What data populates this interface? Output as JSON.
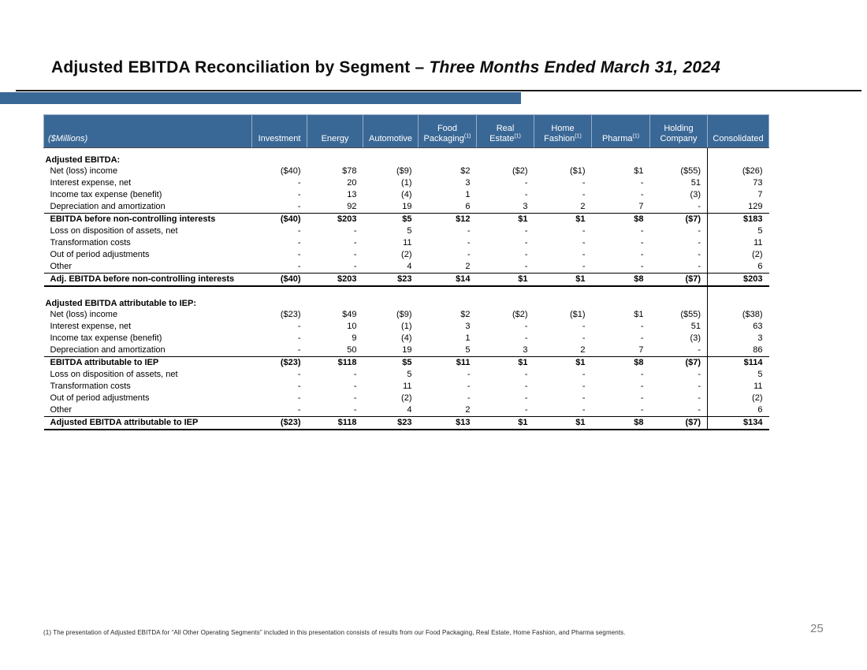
{
  "slide": {
    "title": {
      "main": "Adjusted EBITDA Reconciliation by Segment – ",
      "emphasis": "Three Months Ended March 31, 2024"
    },
    "footnote": "(1) The presentation of Adjusted EBITDA for “All Other Operating Segments” included in this presentation consists of results from our Food Packaging, Real Estate, Home Fashion, and Pharma segments.",
    "page_number": "25"
  },
  "colors": {
    "header_blue": "#3A6896",
    "accent_bar": "#3A6896",
    "page_number_gray": "#7F7F7F"
  },
  "table": {
    "unit_label": "($Millions)",
    "columns": [
      {
        "line1": "",
        "line2": "Investment",
        "sup": ""
      },
      {
        "line1": "",
        "line2": "Energy",
        "sup": ""
      },
      {
        "line1": "",
        "line2": "Automotive",
        "sup": ""
      },
      {
        "line1": "Food",
        "line2": "Packaging",
        "sup": "(1)"
      },
      {
        "line1": "Real",
        "line2": "Estate",
        "sup": "(1)"
      },
      {
        "line1": "Home",
        "line2": "Fashion",
        "sup": "(1)"
      },
      {
        "line1": "",
        "line2": "Pharma",
        "sup": "(1)"
      },
      {
        "line1": "Holding",
        "line2": "Company",
        "sup": ""
      },
      {
        "line1": "",
        "line2": "Consolidated",
        "sup": ""
      }
    ],
    "rows": [
      {
        "label": "Adjusted EBITDA:",
        "style": "section",
        "values": [
          "",
          "",
          "",
          "",
          "",
          "",
          "",
          "",
          ""
        ]
      },
      {
        "label": "Net (loss) income",
        "style": "item",
        "values": [
          "($40)",
          "$78",
          "($9)",
          "$2",
          "($2)",
          "($1)",
          "$1",
          "($55)",
          "($26)"
        ]
      },
      {
        "label": "Interest expense, net",
        "style": "item",
        "values": [
          "-",
          "20",
          "(1)",
          "3",
          "-",
          "-",
          "-",
          "51",
          "73"
        ]
      },
      {
        "label": "Income tax expense (benefit)",
        "style": "item",
        "values": [
          "-",
          "13",
          "(4)",
          "1",
          "-",
          "-",
          "-",
          "(3)",
          "7"
        ]
      },
      {
        "label": "Depreciation and amortization",
        "style": "item",
        "values": [
          "-",
          "92",
          "19",
          "6",
          "3",
          "2",
          "7",
          "-",
          "129"
        ]
      },
      {
        "label": "EBITDA before non-controlling interests",
        "style": "total",
        "values": [
          "($40)",
          "$203",
          "$5",
          "$12",
          "$1",
          "$1",
          "$8",
          "($7)",
          "$183"
        ]
      },
      {
        "label": "Loss on disposition of assets, net",
        "style": "item",
        "values": [
          "-",
          "-",
          "5",
          "-",
          "-",
          "-",
          "-",
          "-",
          "5"
        ]
      },
      {
        "label": "Transformation costs",
        "style": "item",
        "values": [
          "-",
          "-",
          "11",
          "-",
          "-",
          "-",
          "-",
          "-",
          "11"
        ]
      },
      {
        "label": "Out of period adjustments",
        "style": "item",
        "values": [
          "-",
          "-",
          "(2)",
          "-",
          "-",
          "-",
          "-",
          "-",
          "(2)"
        ]
      },
      {
        "label": "Other",
        "style": "item",
        "values": [
          "-",
          "-",
          "4",
          "2",
          "-",
          "-",
          "-",
          "-",
          "6"
        ]
      },
      {
        "label": "Adj. EBITDA before non-controlling interests",
        "style": "total_strong",
        "values": [
          "($40)",
          "$203",
          "$23",
          "$14",
          "$1",
          "$1",
          "$8",
          "($7)",
          "$203"
        ]
      },
      {
        "label": "",
        "style": "spacer",
        "values": [
          "",
          "",
          "",
          "",
          "",
          "",
          "",
          "",
          ""
        ]
      },
      {
        "label": "Adjusted EBITDA attributable to IEP:",
        "style": "section",
        "values": [
          "",
          "",
          "",
          "",
          "",
          "",
          "",
          "",
          ""
        ]
      },
      {
        "label": "Net (loss) income",
        "style": "item",
        "values": [
          "($23)",
          "$49",
          "($9)",
          "$2",
          "($2)",
          "($1)",
          "$1",
          "($55)",
          "($38)"
        ]
      },
      {
        "label": "Interest expense, net",
        "style": "item",
        "values": [
          "-",
          "10",
          "(1)",
          "3",
          "-",
          "-",
          "-",
          "51",
          "63"
        ]
      },
      {
        "label": "Income tax expense (benefit)",
        "style": "item",
        "values": [
          "-",
          "9",
          "(4)",
          "1",
          "-",
          "-",
          "-",
          "(3)",
          "3"
        ]
      },
      {
        "label": "Depreciation and amortization",
        "style": "item",
        "values": [
          "-",
          "50",
          "19",
          "5",
          "3",
          "2",
          "7",
          "-",
          "86"
        ]
      },
      {
        "label": "EBITDA attributable to IEP",
        "style": "total",
        "values": [
          "($23)",
          "$118",
          "$5",
          "$11",
          "$1",
          "$1",
          "$8",
          "($7)",
          "$114"
        ]
      },
      {
        "label": "Loss on disposition of assets, net",
        "style": "item",
        "values": [
          "-",
          "-",
          "5",
          "-",
          "-",
          "-",
          "-",
          "-",
          "5"
        ]
      },
      {
        "label": "Transformation costs",
        "style": "item",
        "values": [
          "-",
          "-",
          "11",
          "-",
          "-",
          "-",
          "-",
          "-",
          "11"
        ]
      },
      {
        "label": "Out of period adjustments",
        "style": "item",
        "values": [
          "-",
          "-",
          "(2)",
          "-",
          "-",
          "-",
          "-",
          "-",
          "(2)"
        ]
      },
      {
        "label": "Other",
        "style": "item",
        "values": [
          "-",
          "-",
          "4",
          "2",
          "-",
          "-",
          "-",
          "-",
          "6"
        ]
      },
      {
        "label": "Adjusted EBITDA attributable to IEP",
        "style": "total_strong",
        "values": [
          "($23)",
          "$118",
          "$23",
          "$13",
          "$1",
          "$1",
          "$8",
          "($7)",
          "$134"
        ]
      }
    ]
  }
}
